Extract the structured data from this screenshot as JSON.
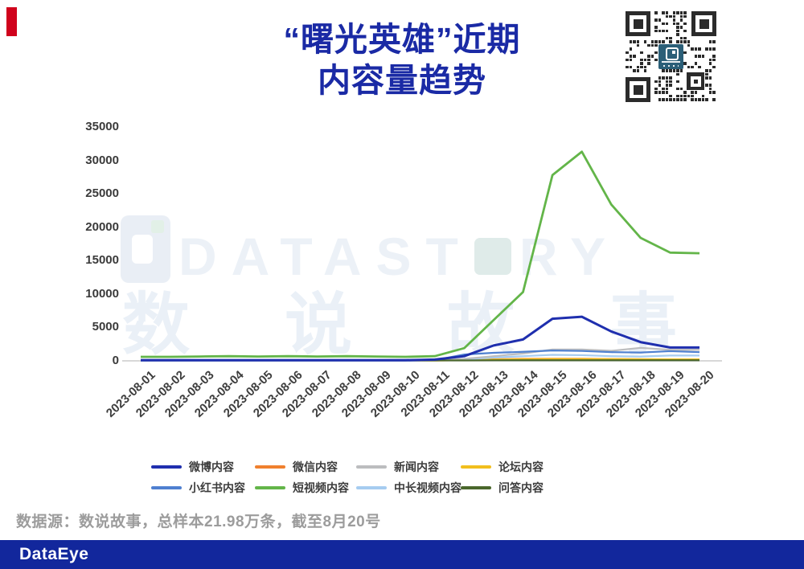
{
  "accent": {
    "bar_color": "#d0021c"
  },
  "title": {
    "line1": "“曙光英雄”近期",
    "line2": "内容量趋势",
    "color": "#1a2aa5"
  },
  "qr": {
    "center_logo_color": "#2b5f78",
    "module_color": "#2b2b2b"
  },
  "watermark": {
    "brand_left": "DATAST",
    "brand_right": "RY",
    "cjk": "数说故事"
  },
  "chart_data": {
    "type": "line",
    "title": "“曙光英雄”近期内容量趋势",
    "xlabel": "",
    "ylabel": "",
    "ylim": [
      0,
      35000
    ],
    "yticks": [
      0,
      5000,
      10000,
      15000,
      20000,
      25000,
      30000,
      35000
    ],
    "grid": false,
    "legend_position": "bottom",
    "categories": [
      "2023-08-01",
      "2023-08-02",
      "2023-08-03",
      "2023-08-04",
      "2023-08-05",
      "2023-08-06",
      "2023-08-07",
      "2023-08-08",
      "2023-08-09",
      "2023-08-10",
      "2023-08-11",
      "2023-08-12",
      "2023-08-13",
      "2023-08-14",
      "2023-08-15",
      "2023-08-16",
      "2023-08-17",
      "2023-08-18",
      "2023-08-19",
      "2023-08-20"
    ],
    "series": [
      {
        "name": "微博内容",
        "color": "#1f2fae",
        "width": 3,
        "values": [
          100,
          100,
          100,
          100,
          100,
          100,
          100,
          100,
          100,
          100,
          200,
          700,
          2300,
          3200,
          6300,
          6600,
          4400,
          2800,
          2000,
          2000
        ]
      },
      {
        "name": "微信内容",
        "color": "#f0802e",
        "width": 2.2,
        "values": [
          30,
          30,
          30,
          30,
          30,
          30,
          30,
          30,
          30,
          30,
          50,
          150,
          250,
          300,
          320,
          320,
          280,
          250,
          220,
          220
        ]
      },
      {
        "name": "新闻内容",
        "color": "#bcbdbf",
        "width": 2.2,
        "values": [
          20,
          20,
          20,
          20,
          20,
          20,
          20,
          20,
          20,
          20,
          60,
          300,
          700,
          1100,
          1700,
          1700,
          1500,
          1950,
          1650,
          1650
        ]
      },
      {
        "name": "论坛内容",
        "color": "#f2bf1d",
        "width": 2.2,
        "values": [
          20,
          20,
          20,
          20,
          20,
          20,
          20,
          20,
          20,
          20,
          40,
          100,
          200,
          250,
          280,
          280,
          260,
          250,
          230,
          230
        ]
      },
      {
        "name": "小红书内容",
        "color": "#4f80d0",
        "width": 2.2,
        "values": [
          40,
          40,
          40,
          40,
          40,
          40,
          40,
          40,
          40,
          40,
          100,
          950,
          1200,
          1350,
          1550,
          1480,
          1300,
          1250,
          1450,
          1300
        ]
      },
      {
        "name": "短视频内容",
        "color": "#63b549",
        "width": 2.8,
        "values": [
          600,
          600,
          650,
          700,
          650,
          700,
          650,
          700,
          650,
          600,
          700,
          1900,
          6100,
          10300,
          27800,
          31300,
          23400,
          18400,
          16200,
          16100
        ]
      },
      {
        "name": "中长视频内容",
        "color": "#a6ccf0",
        "width": 2.2,
        "values": [
          20,
          20,
          20,
          20,
          20,
          20,
          20,
          20,
          20,
          20,
          50,
          200,
          500,
          700,
          900,
          850,
          700,
          650,
          800,
          800
        ]
      },
      {
        "name": "问答内容",
        "color": "#4a672c",
        "width": 2.2,
        "values": [
          70,
          70,
          70,
          70,
          70,
          70,
          70,
          70,
          70,
          70,
          70,
          70,
          80,
          90,
          90,
          90,
          90,
          90,
          90,
          90
        ]
      }
    ]
  },
  "source_note": "数据源：数说故事，总样本21.98万条，截至8月20号",
  "footer": {
    "logo": "DataEye",
    "bar_color": "#12279c"
  }
}
